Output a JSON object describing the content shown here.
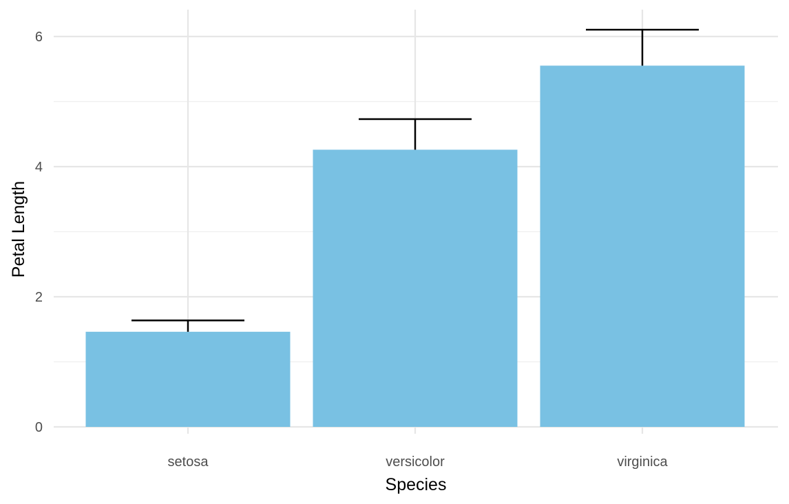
{
  "chart_data": {
    "type": "bar",
    "title": "",
    "xlabel": "Species",
    "ylabel": "Petal Length",
    "categories": [
      "setosa",
      "versicolor",
      "virginica"
    ],
    "values": [
      1.462,
      4.26,
      5.552
    ],
    "error_upper": [
      1.636,
      4.73,
      6.104
    ],
    "ylim": [
      0,
      6.3
    ],
    "yticks": [
      0,
      2,
      4,
      6
    ],
    "ytick_labels": [
      "0",
      "2",
      "4",
      "6"
    ],
    "grid": true,
    "legend": "none",
    "bar_color": "#79c1e3"
  }
}
